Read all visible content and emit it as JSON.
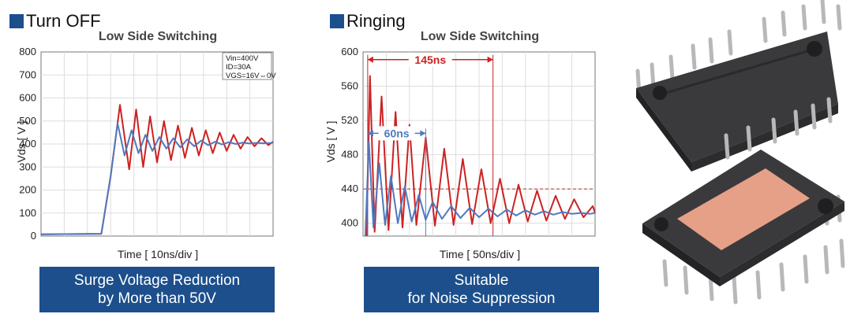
{
  "chart_data": [
    {
      "type": "line",
      "heading": "Turn OFF",
      "title": "Low Side Switching",
      "xlabel": "Time [ 10ns/div ]",
      "ylabel": "Vds [ V ]",
      "ylim": [
        0,
        800
      ],
      "yticks": [
        "0",
        "100",
        "200",
        "300",
        "400",
        "500",
        "600",
        "700",
        "800"
      ],
      "xlim": [
        0,
        10
      ],
      "grid": true,
      "annotation_lines": [
        "Vin=400V",
        "ID=30A",
        "VGS=16V⇔0V"
      ],
      "series": [
        {
          "color": "#cc2222",
          "x": [
            0,
            2.6,
            3.0,
            3.4,
            3.8,
            4.1,
            4.4,
            4.7,
            5.0,
            5.3,
            5.6,
            5.9,
            6.2,
            6.5,
            6.8,
            7.1,
            7.4,
            7.7,
            8.0,
            8.3,
            8.6,
            8.9,
            9.2,
            9.5,
            9.8,
            10.0
          ],
          "y": [
            8,
            10,
            260,
            570,
            290,
            550,
            300,
            520,
            320,
            500,
            330,
            480,
            340,
            470,
            350,
            460,
            360,
            450,
            370,
            440,
            380,
            430,
            390,
            425,
            395,
            410
          ]
        },
        {
          "color": "#4f79bf",
          "x": [
            0,
            2.6,
            3.0,
            3.3,
            3.6,
            3.9,
            4.2,
            4.5,
            4.8,
            5.1,
            5.4,
            5.7,
            6.0,
            6.3,
            6.6,
            6.9,
            7.2,
            7.5,
            7.8,
            8.1,
            8.4,
            8.7,
            9.0,
            9.3,
            9.6,
            10.0
          ],
          "y": [
            8,
            10,
            260,
            490,
            350,
            460,
            360,
            440,
            370,
            430,
            380,
            425,
            385,
            420,
            390,
            415,
            395,
            410,
            398,
            408,
            400,
            406,
            402,
            405,
            403,
            405
          ]
        }
      ],
      "banner_lines": [
        "Surge Voltage Reduction",
        "by More than 50V"
      ]
    },
    {
      "type": "line",
      "heading": "Ringing",
      "title": "Low Side Switching",
      "xlabel": "Time [ 50ns/div ]",
      "ylabel": "Vds [ V ]",
      "ylim": [
        385,
        600
      ],
      "yticks": [
        "400",
        "440",
        "480",
        "520",
        "560",
        "600"
      ],
      "highlight_tick": "440",
      "xlim": [
        0,
        10
      ],
      "grid": true,
      "annotations": [
        {
          "label": "145ns",
          "color": "#cc2222",
          "x1": 0.2,
          "x2": 5.6,
          "y": 591
        },
        {
          "label": "60ns",
          "color": "#4f79bf",
          "x1": 0.2,
          "x2": 2.7,
          "y": 505
        }
      ],
      "reference_line": 440,
      "series": [
        {
          "color": "#cc2222",
          "x": [
            0.15,
            0.3,
            0.5,
            0.8,
            1.1,
            1.4,
            1.7,
            2.0,
            2.3,
            2.7,
            3.1,
            3.5,
            3.9,
            4.3,
            4.7,
            5.1,
            5.5,
            5.9,
            6.3,
            6.7,
            7.1,
            7.5,
            7.9,
            8.3,
            8.7,
            9.1,
            9.5,
            9.9,
            10.0
          ],
          "y": [
            385,
            572,
            390,
            548,
            392,
            530,
            395,
            515,
            398,
            500,
            397,
            487,
            398,
            475,
            399,
            463,
            400,
            452,
            400,
            445,
            402,
            438,
            403,
            432,
            405,
            428,
            407,
            420,
            412
          ]
        },
        {
          "color": "#4f79bf",
          "x": [
            0.1,
            0.25,
            0.45,
            0.7,
            0.95,
            1.2,
            1.5,
            1.8,
            2.1,
            2.4,
            2.7,
            3.0,
            3.4,
            3.8,
            4.2,
            4.6,
            5.0,
            5.4,
            5.8,
            6.2,
            6.6,
            7.0,
            7.4,
            7.8,
            8.2,
            8.6,
            9.0,
            9.4,
            9.8,
            10.0
          ],
          "y": [
            385,
            495,
            395,
            470,
            398,
            455,
            400,
            443,
            402,
            433,
            404,
            425,
            405,
            420,
            406,
            418,
            407,
            417,
            408,
            416,
            409,
            415,
            410,
            414,
            410,
            413,
            411,
            412,
            411,
            412
          ]
        }
      ],
      "banner_lines": [
        "Suitable",
        "for Noise Suppression"
      ]
    }
  ]
}
